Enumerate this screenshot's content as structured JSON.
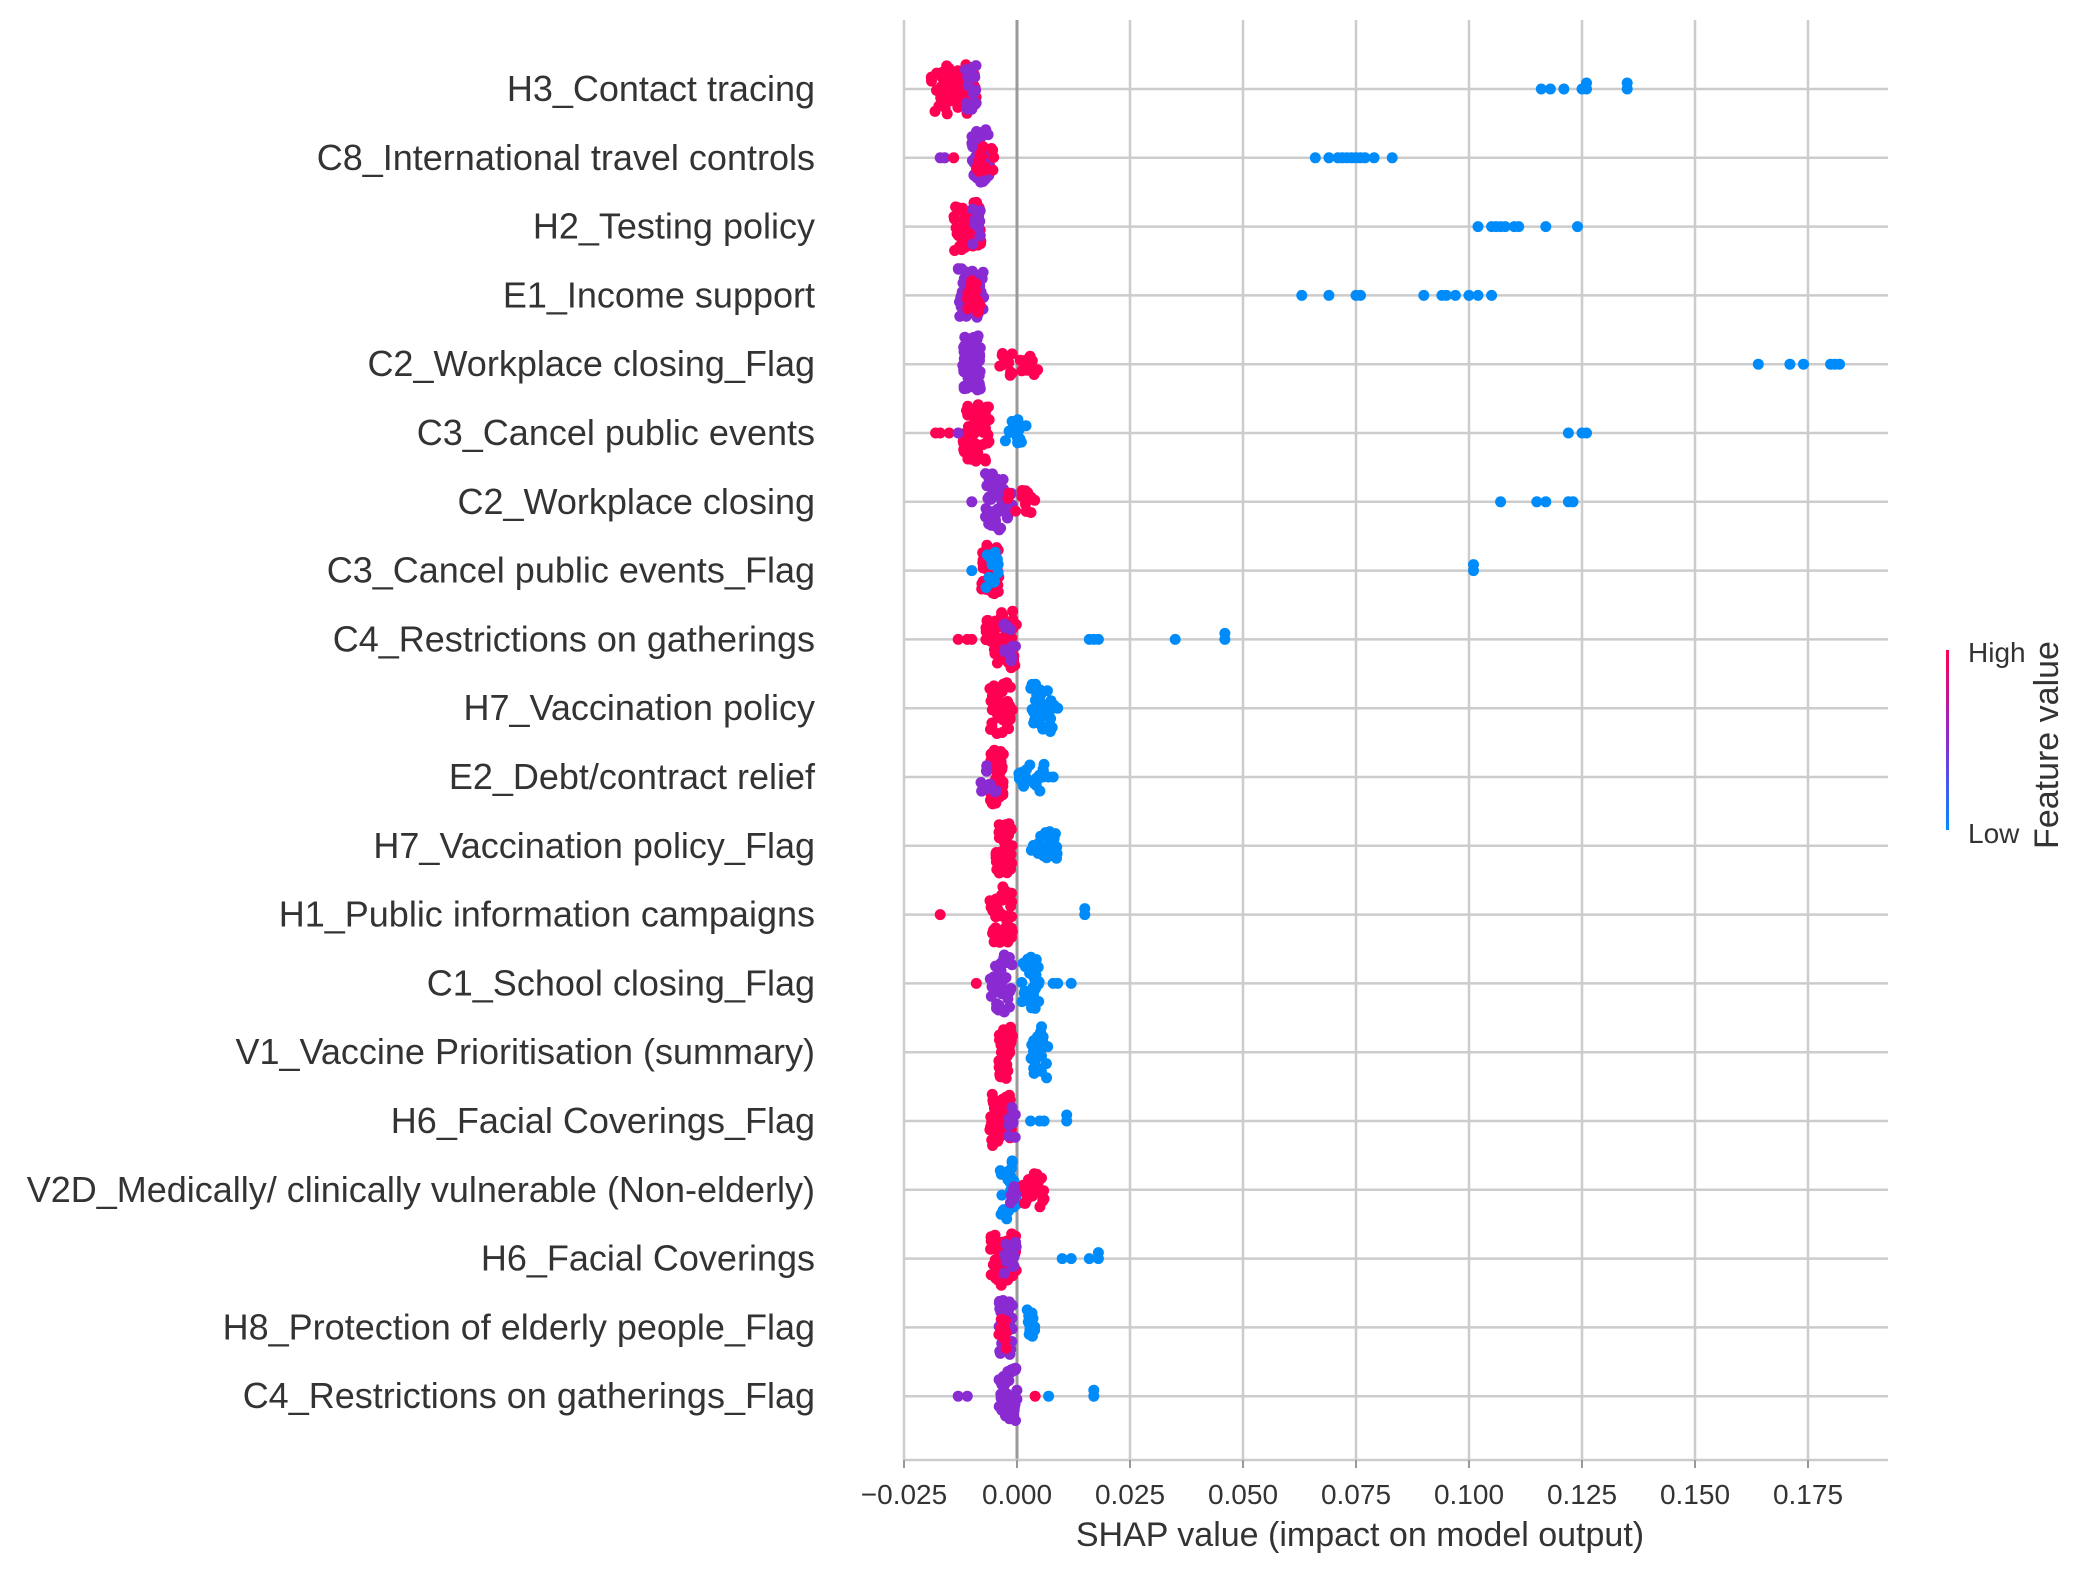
{
  "chart_data": {
    "type": "scatter",
    "subtype": "shap-beeswarm",
    "xlabel": "SHAP value (impact on model output)",
    "xlim": [
      -0.03,
      0.193
    ],
    "xticks": [
      -0.025,
      0.0,
      0.025,
      0.05,
      0.075,
      0.1,
      0.125,
      0.15,
      0.175
    ],
    "xtick_labels": [
      "−0.025",
      "0.000",
      "0.025",
      "0.050",
      "0.075",
      "0.100",
      "0.125",
      "0.150",
      "0.175"
    ],
    "colorbar": {
      "label": "Feature value",
      "high": "High",
      "low": "Low"
    },
    "colors": {
      "low": "#008bfb",
      "mid": "#8a2bd2",
      "high": "#ff0052",
      "grid": "#cccccc",
      "zero_line": "#999999"
    },
    "features": [
      {
        "name": "H3_Contact tracing",
        "clusters": [
          {
            "range": [
              -0.019,
              -0.009
            ],
            "count": 70,
            "width": 0.75,
            "color": "high"
          },
          {
            "range": [
              -0.012,
              -0.009
            ],
            "count": 14,
            "width": 0.75,
            "color": "mid"
          }
        ],
        "points": [
          {
            "x": 0.116,
            "c": "low"
          },
          {
            "x": 0.118,
            "c": "low"
          },
          {
            "x": 0.121,
            "c": "low"
          },
          {
            "x": 0.125,
            "c": "low"
          },
          {
            "x": 0.126,
            "c": "low"
          },
          {
            "x": 0.126,
            "c": "low"
          },
          {
            "x": 0.135,
            "c": "low"
          },
          {
            "x": 0.135,
            "c": "low"
          }
        ]
      },
      {
        "name": "C8_International travel controls",
        "clusters": [
          {
            "range": [
              -0.01,
              -0.006
            ],
            "count": 60,
            "width": 0.85,
            "color": "mid"
          },
          {
            "range": [
              -0.009,
              -0.005
            ],
            "count": 12,
            "width": 0.6,
            "color": "high"
          }
        ],
        "points": [
          {
            "x": -0.017,
            "c": "mid"
          },
          {
            "x": -0.016,
            "c": "mid"
          },
          {
            "x": -0.014,
            "c": "high"
          },
          {
            "x": 0.066,
            "c": "low"
          },
          {
            "x": 0.069,
            "c": "low"
          },
          {
            "x": 0.071,
            "c": "low"
          },
          {
            "x": 0.072,
            "c": "low"
          },
          {
            "x": 0.073,
            "c": "low"
          },
          {
            "x": 0.074,
            "c": "low"
          },
          {
            "x": 0.075,
            "c": "low"
          },
          {
            "x": 0.076,
            "c": "low"
          },
          {
            "x": 0.077,
            "c": "low"
          },
          {
            "x": 0.079,
            "c": "low"
          },
          {
            "x": 0.083,
            "c": "low"
          }
        ]
      },
      {
        "name": "H2_Testing policy",
        "clusters": [
          {
            "range": [
              -0.014,
              -0.008
            ],
            "count": 58,
            "width": 0.8,
            "color": "high"
          },
          {
            "range": [
              -0.01,
              -0.008
            ],
            "count": 10,
            "width": 0.6,
            "color": "mid"
          }
        ],
        "points": [
          {
            "x": 0.102,
            "c": "low"
          },
          {
            "x": 0.105,
            "c": "low"
          },
          {
            "x": 0.106,
            "c": "low"
          },
          {
            "x": 0.107,
            "c": "low"
          },
          {
            "x": 0.108,
            "c": "low"
          },
          {
            "x": 0.11,
            "c": "low"
          },
          {
            "x": 0.111,
            "c": "low"
          },
          {
            "x": 0.117,
            "c": "low"
          },
          {
            "x": 0.124,
            "c": "low"
          }
        ]
      },
      {
        "name": "E1_Income support",
        "clusters": [
          {
            "range": [
              -0.013,
              -0.007
            ],
            "count": 55,
            "width": 0.8,
            "color": "mid"
          },
          {
            "range": [
              -0.011,
              -0.008
            ],
            "count": 12,
            "width": 0.7,
            "color": "high"
          }
        ],
        "points": [
          {
            "x": 0.063,
            "c": "low"
          },
          {
            "x": 0.069,
            "c": "low"
          },
          {
            "x": 0.075,
            "c": "low"
          },
          {
            "x": 0.076,
            "c": "low"
          },
          {
            "x": 0.09,
            "c": "low"
          },
          {
            "x": 0.094,
            "c": "low"
          },
          {
            "x": 0.095,
            "c": "low"
          },
          {
            "x": 0.097,
            "c": "low"
          },
          {
            "x": 0.1,
            "c": "low"
          },
          {
            "x": 0.102,
            "c": "low"
          },
          {
            "x": 0.105,
            "c": "low"
          }
        ]
      },
      {
        "name": "C2_Workplace closing_Flag",
        "clusters": [
          {
            "range": [
              -0.012,
              -0.008
            ],
            "count": 80,
            "width": 0.85,
            "color": "mid"
          },
          {
            "range": [
              -0.004,
              0.005
            ],
            "count": 22,
            "width": 0.35,
            "color": "high"
          }
        ],
        "points": [
          {
            "x": 0.164,
            "c": "low"
          },
          {
            "x": 0.171,
            "c": "low"
          },
          {
            "x": 0.174,
            "c": "low"
          },
          {
            "x": 0.18,
            "c": "low"
          },
          {
            "x": 0.181,
            "c": "low"
          },
          {
            "x": 0.182,
            "c": "low"
          }
        ]
      },
      {
        "name": "C3_Cancel public events",
        "clusters": [
          {
            "range": [
              -0.012,
              -0.006
            ],
            "count": 60,
            "width": 0.85,
            "color": "high"
          },
          {
            "range": [
              -0.004,
              0.002
            ],
            "count": 14,
            "width": 0.4,
            "color": "low"
          }
        ],
        "points": [
          {
            "x": -0.018,
            "c": "high"
          },
          {
            "x": -0.017,
            "c": "high"
          },
          {
            "x": -0.015,
            "c": "high"
          },
          {
            "x": -0.013,
            "c": "mid"
          },
          {
            "x": 0.122,
            "c": "low"
          },
          {
            "x": 0.125,
            "c": "low"
          },
          {
            "x": 0.126,
            "c": "low"
          }
        ]
      },
      {
        "name": "C2_Workplace closing",
        "clusters": [
          {
            "range": [
              -0.007,
              -0.001
            ],
            "count": 50,
            "width": 0.85,
            "color": "mid"
          },
          {
            "range": [
              -0.003,
              0.004
            ],
            "count": 14,
            "width": 0.35,
            "color": "high"
          }
        ],
        "points": [
          {
            "x": -0.01,
            "c": "mid"
          },
          {
            "x": 0.107,
            "c": "low"
          },
          {
            "x": 0.115,
            "c": "low"
          },
          {
            "x": 0.117,
            "c": "low"
          },
          {
            "x": 0.122,
            "c": "low"
          },
          {
            "x": 0.123,
            "c": "low"
          }
        ]
      },
      {
        "name": "C3_Cancel public events_Flag",
        "clusters": [
          {
            "range": [
              -0.008,
              -0.004
            ],
            "count": 40,
            "width": 0.75,
            "color": "high"
          },
          {
            "range": [
              -0.007,
              -0.004
            ],
            "count": 12,
            "width": 0.6,
            "color": "low"
          }
        ],
        "points": [
          {
            "x": -0.01,
            "c": "low"
          },
          {
            "x": 0.101,
            "c": "low"
          },
          {
            "x": 0.101,
            "c": "low"
          }
        ]
      },
      {
        "name": "C4_Restrictions on gatherings",
        "clusters": [
          {
            "range": [
              -0.007,
              0.0
            ],
            "count": 55,
            "width": 0.85,
            "color": "high"
          },
          {
            "range": [
              -0.003,
              0.0
            ],
            "count": 12,
            "width": 0.7,
            "color": "mid"
          }
        ],
        "points": [
          {
            "x": -0.013,
            "c": "high"
          },
          {
            "x": -0.011,
            "c": "high"
          },
          {
            "x": -0.01,
            "c": "high"
          },
          {
            "x": 0.016,
            "c": "low"
          },
          {
            "x": 0.017,
            "c": "low"
          },
          {
            "x": 0.018,
            "c": "low"
          },
          {
            "x": 0.035,
            "c": "low"
          },
          {
            "x": 0.046,
            "c": "low"
          },
          {
            "x": 0.046,
            "c": "low"
          }
        ]
      },
      {
        "name": "H7_Vaccination policy",
        "clusters": [
          {
            "range": [
              -0.006,
              -0.001
            ],
            "count": 45,
            "width": 0.8,
            "color": "high"
          },
          {
            "range": [
              0.003,
              0.009
            ],
            "count": 30,
            "width": 0.7,
            "color": "low"
          }
        ],
        "points": [
          {
            "x": 0.009,
            "c": "low"
          }
        ]
      },
      {
        "name": "E2_Debt/contract relief",
        "clusters": [
          {
            "range": [
              -0.006,
              -0.003
            ],
            "count": 50,
            "width": 0.85,
            "color": "high"
          },
          {
            "range": [
              -0.008,
              -0.004
            ],
            "count": 12,
            "width": 0.45,
            "color": "mid"
          },
          {
            "range": [
              0.0,
              0.006
            ],
            "count": 20,
            "width": 0.5,
            "color": "low"
          }
        ],
        "points": [
          {
            "x": 0.007,
            "c": "low"
          },
          {
            "x": 0.008,
            "c": "low"
          }
        ]
      },
      {
        "name": "H7_Vaccination policy_Flag",
        "clusters": [
          {
            "range": [
              -0.005,
              -0.001
            ],
            "count": 45,
            "width": 0.85,
            "color": "high"
          },
          {
            "range": [
              0.003,
              0.009
            ],
            "count": 30,
            "width": 0.45,
            "color": "low"
          }
        ],
        "points": []
      },
      {
        "name": "H1_Public information campaigns",
        "clusters": [
          {
            "range": [
              -0.006,
              -0.001
            ],
            "count": 50,
            "width": 0.85,
            "color": "high"
          }
        ],
        "points": [
          {
            "x": -0.017,
            "c": "high"
          },
          {
            "x": 0.015,
            "c": "low"
          },
          {
            "x": 0.015,
            "c": "low"
          }
        ]
      },
      {
        "name": "C1_School closing_Flag",
        "clusters": [
          {
            "range": [
              -0.006,
              -0.001
            ],
            "count": 40,
            "width": 0.85,
            "color": "mid"
          },
          {
            "range": [
              0.001,
              0.005
            ],
            "count": 40,
            "width": 0.85,
            "color": "low"
          }
        ],
        "points": [
          {
            "x": -0.009,
            "c": "high"
          },
          {
            "x": 0.008,
            "c": "low"
          },
          {
            "x": 0.009,
            "c": "low"
          },
          {
            "x": 0.012,
            "c": "low"
          }
        ]
      },
      {
        "name": "V1_Vaccine Prioritisation (summary)",
        "clusters": [
          {
            "range": [
              -0.004,
              -0.001
            ],
            "count": 45,
            "width": 0.8,
            "color": "high"
          },
          {
            "range": [
              0.003,
              0.007
            ],
            "count": 30,
            "width": 0.75,
            "color": "low"
          }
        ],
        "points": []
      },
      {
        "name": "H6_Facial Coverings_Flag",
        "clusters": [
          {
            "range": [
              -0.006,
              -0.001
            ],
            "count": 50,
            "width": 0.85,
            "color": "high"
          },
          {
            "range": [
              -0.002,
              0.0
            ],
            "count": 8,
            "width": 0.5,
            "color": "mid"
          }
        ],
        "points": [
          {
            "x": 0.003,
            "c": "low"
          },
          {
            "x": 0.005,
            "c": "low"
          },
          {
            "x": 0.006,
            "c": "low"
          },
          {
            "x": 0.011,
            "c": "low"
          },
          {
            "x": 0.011,
            "c": "low"
          }
        ]
      },
      {
        "name": "V2D_Medically/ clinically vulnerable (Non-elderly)",
        "clusters": [
          {
            "range": [
              -0.004,
              0.0
            ],
            "count": 30,
            "width": 0.85,
            "color": "low"
          },
          {
            "range": [
              0.001,
              0.006
            ],
            "count": 28,
            "width": 0.5,
            "color": "high"
          },
          {
            "range": [
              -0.002,
              0.0
            ],
            "count": 8,
            "width": 0.4,
            "color": "mid"
          }
        ],
        "points": []
      },
      {
        "name": "H6_Facial Coverings",
        "clusters": [
          {
            "range": [
              -0.006,
              0.0
            ],
            "count": 55,
            "width": 0.8,
            "color": "high"
          },
          {
            "range": [
              -0.003,
              0.0
            ],
            "count": 14,
            "width": 0.6,
            "color": "mid"
          }
        ],
        "points": [
          {
            "x": 0.01,
            "c": "low"
          },
          {
            "x": 0.012,
            "c": "low"
          },
          {
            "x": 0.016,
            "c": "low"
          },
          {
            "x": 0.018,
            "c": "low"
          },
          {
            "x": 0.018,
            "c": "low"
          }
        ]
      },
      {
        "name": "H8_Protection of elderly people_Flag",
        "clusters": [
          {
            "range": [
              -0.004,
              -0.001
            ],
            "count": 40,
            "width": 0.8,
            "color": "mid"
          },
          {
            "range": [
              -0.004,
              -0.002
            ],
            "count": 12,
            "width": 0.7,
            "color": "high"
          },
          {
            "range": [
              0.002,
              0.004
            ],
            "count": 14,
            "width": 0.6,
            "color": "low"
          }
        ],
        "points": []
      },
      {
        "name": "C4_Restrictions on gatherings_Flag",
        "clusters": [
          {
            "range": [
              -0.004,
              0.0
            ],
            "count": 40,
            "width": 0.85,
            "color": "mid"
          }
        ],
        "points": [
          {
            "x": -0.013,
            "c": "mid"
          },
          {
            "x": -0.011,
            "c": "mid"
          },
          {
            "x": 0.004,
            "c": "high"
          },
          {
            "x": 0.007,
            "c": "low"
          },
          {
            "x": 0.017,
            "c": "low"
          },
          {
            "x": 0.017,
            "c": "low"
          }
        ]
      }
    ]
  }
}
